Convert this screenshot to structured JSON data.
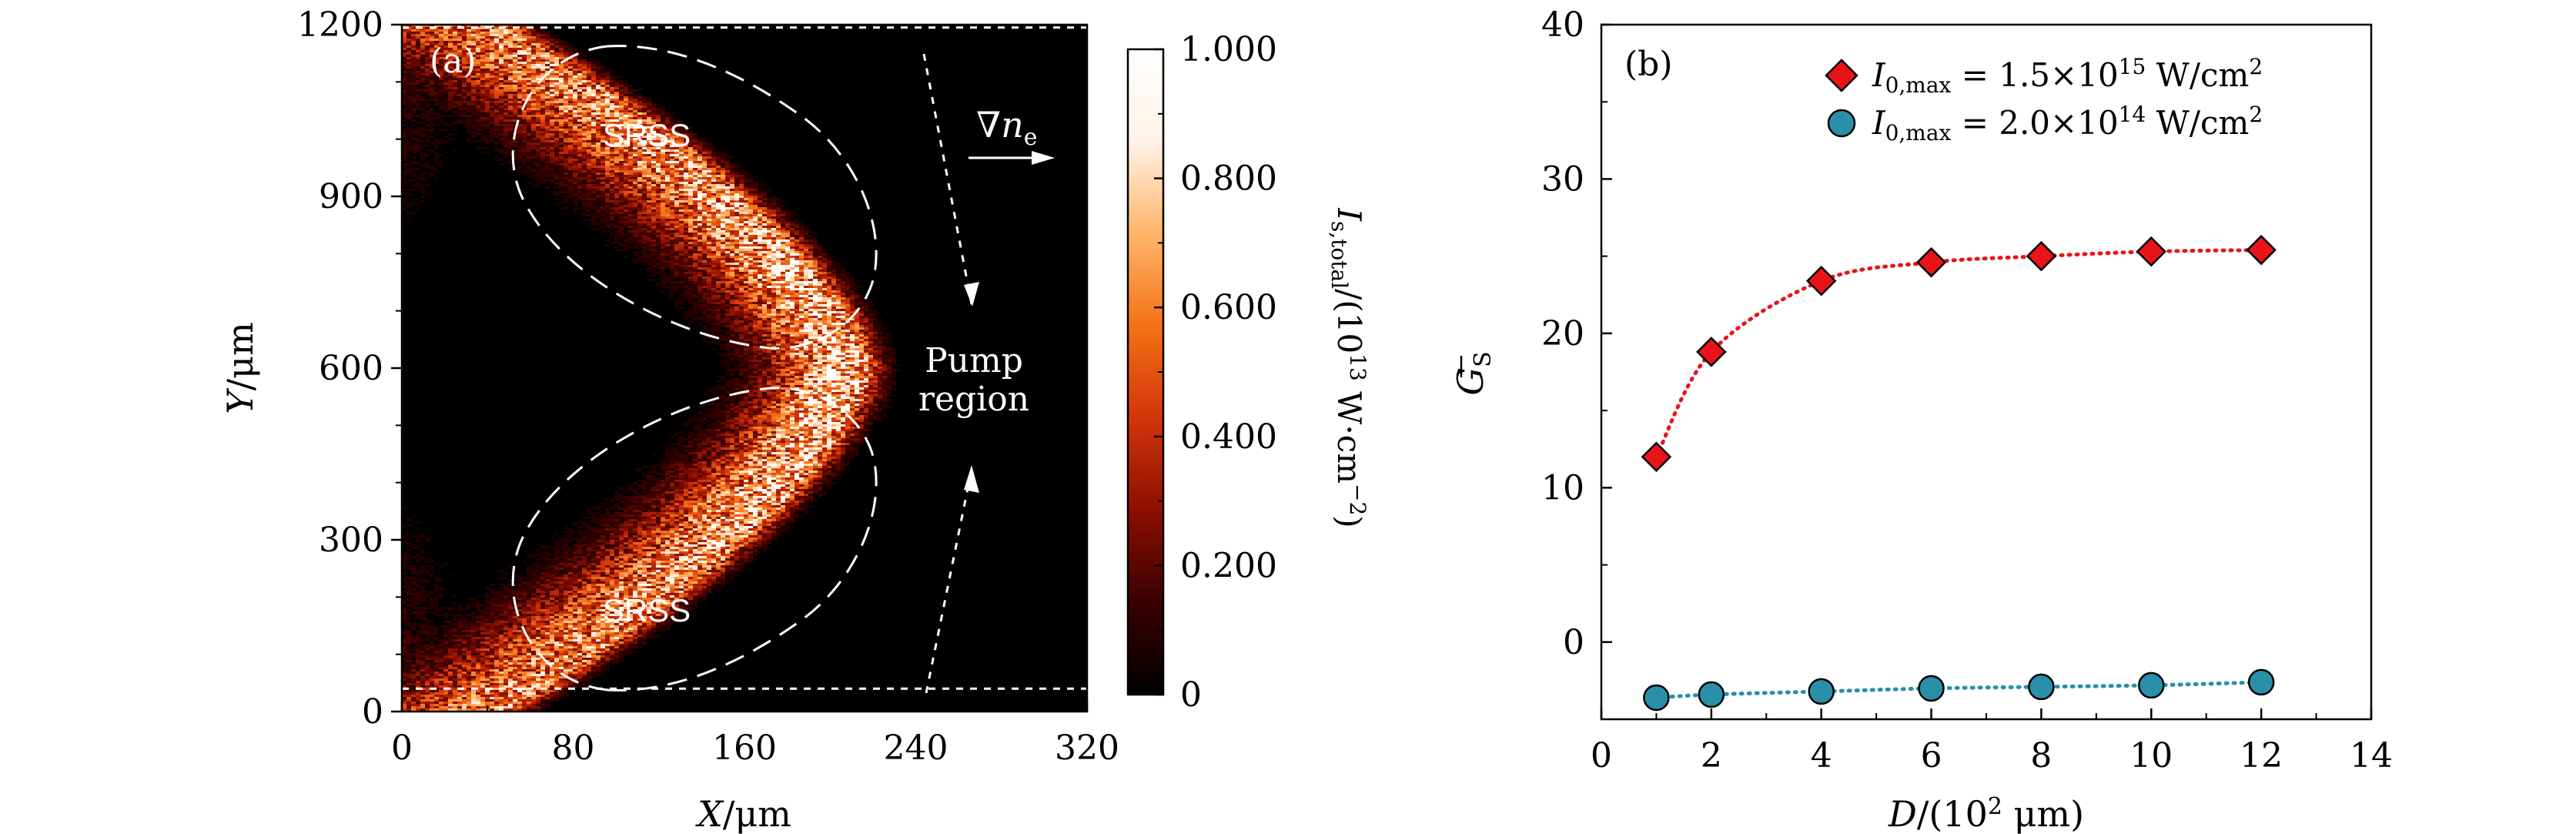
{
  "chart_data": [
    {
      "type": "heatmap",
      "panel_label": "(a)",
      "xlabel_italic": "X",
      "xlabel_unit": "/μm",
      "ylabel_italic": "Y",
      "ylabel_unit": "/μm",
      "xlim": [
        0,
        320
      ],
      "ylim": [
        0,
        1200
      ],
      "xticks": [
        "0",
        "80",
        "160",
        "240",
        "320"
      ],
      "yticks": [
        "0",
        "300",
        "600",
        "900",
        "1200"
      ],
      "x_tick_values": [
        0,
        80,
        160,
        240,
        320
      ],
      "y_tick_values": [
        0,
        300,
        600,
        900,
        1200
      ],
      "colorbar": {
        "min": 0,
        "max": 1.0,
        "ticks": [
          "0",
          "0.200",
          "0.400",
          "0.600",
          "0.800",
          "1.000"
        ],
        "tick_values": [
          0,
          0.2,
          0.4,
          0.6,
          0.8,
          1.0
        ],
        "label_main": "I",
        "label_sub": "s,total",
        "label_mid": "/(10",
        "label_exp": "13",
        "label_units": " W·cm",
        "label_units_exp": "−2",
        "label_close": ")",
        "colors": [
          "#000000",
          "#3a0000",
          "#8c0f00",
          "#d2350a",
          "#f47216",
          "#ffb56a",
          "#fff3e6",
          "#ffffff"
        ]
      },
      "annotations": {
        "srss_top": "SRSS",
        "srss_bottom": "SRSS",
        "pump_line1": "Pump",
        "pump_line2": "region",
        "gradient_symbol": "∇",
        "gradient_var": "n",
        "gradient_sub": "e"
      },
      "dashed_lines_y": [
        1195,
        40
      ]
    },
    {
      "type": "scatter",
      "panel_label": "(b)",
      "xlabel_italic": "D",
      "xlabel_rest": "/(10",
      "xlabel_exp": "2",
      "xlabel_unit": " μm)",
      "ylabel": "G",
      "ylabel_sub": "S",
      "xlim": [
        0,
        14
      ],
      "ylim": [
        -5,
        40
      ],
      "xticks": [
        "0",
        "2",
        "4",
        "6",
        "8",
        "10",
        "12",
        "14"
      ],
      "yticks": [
        "0",
        "10",
        "20",
        "30",
        "40"
      ],
      "x_tick_values": [
        0,
        2,
        4,
        6,
        8,
        10,
        12,
        14
      ],
      "y_tick_values": [
        0,
        10,
        20,
        30,
        40
      ],
      "x": [
        1,
        2,
        4,
        6,
        8,
        10,
        12
      ],
      "series": [
        {
          "name": "I0,max = 1.5×10^15 W/cm^2",
          "legend_var": "I",
          "legend_sub": "0,max",
          "legend_eq": " = 1.5×10",
          "legend_exp": "15",
          "legend_unit": " W/cm",
          "legend_unit_exp": "2",
          "marker": "diamond",
          "color": "#e8141a",
          "line_color": "#e8141a",
          "values": [
            12.0,
            18.8,
            23.4,
            24.6,
            25.0,
            25.3,
            25.4
          ]
        },
        {
          "name": "I0,max = 2.0×10^14 W/cm^2",
          "legend_var": "I",
          "legend_sub": "0,max",
          "legend_eq": " = 2.0×10",
          "legend_exp": "14",
          "legend_unit": " W/cm",
          "legend_unit_exp": "2",
          "marker": "circle",
          "color": "#2a8fa8",
          "line_color": "#2a8fa8",
          "values": [
            -3.6,
            -3.4,
            -3.2,
            -3.0,
            -2.9,
            -2.8,
            -2.6
          ]
        }
      ],
      "legend_position": "top-right"
    }
  ]
}
